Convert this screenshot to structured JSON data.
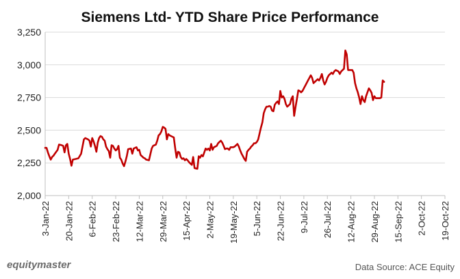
{
  "chart_data": {
    "type": "line",
    "title": "Siemens Ltd- YTD Share Price Performance",
    "xlabel": "",
    "ylabel": "",
    "ylim": [
      2000,
      3250
    ],
    "yticks": [
      2000,
      2250,
      2500,
      2750,
      3000,
      3250
    ],
    "ytick_labels": [
      "2,000",
      "2,250",
      "2,500",
      "2,750",
      "3,000",
      "3,250"
    ],
    "xlim": [
      0,
      289
    ],
    "xticks": [
      {
        "label": "3-Jan-22",
        "day": 0
      },
      {
        "label": "20-Jan-22",
        "day": 17
      },
      {
        "label": "6-Feb-22",
        "day": 34
      },
      {
        "label": "23-Feb-22",
        "day": 51
      },
      {
        "label": "12-Mar-22",
        "day": 68
      },
      {
        "label": "29-Mar-22",
        "day": 85
      },
      {
        "label": "15-Apr-22",
        "day": 102
      },
      {
        "label": "2-May-22",
        "day": 119
      },
      {
        "label": "19-May-22",
        "day": 136
      },
      {
        "label": "5-Jun-22",
        "day": 153
      },
      {
        "label": "22-Jun-22",
        "day": 170
      },
      {
        "label": "9-Jul-22",
        "day": 187
      },
      {
        "label": "26-Jul-22",
        "day": 204
      },
      {
        "label": "12-Aug-22",
        "day": 221
      },
      {
        "label": "29-Aug-22",
        "day": 238
      },
      {
        "label": "15-Sep-22",
        "day": 255
      },
      {
        "label": "2-Oct-22",
        "day": 272
      },
      {
        "label": "19-Oct-22",
        "day": 289
      }
    ],
    "series": [
      {
        "name": "Siemens Ltd",
        "color": "#c00000",
        "points": [
          [
            0,
            2365
          ],
          [
            1,
            2365
          ],
          [
            2,
            2330
          ],
          [
            3,
            2300
          ],
          [
            4,
            2275
          ],
          [
            5,
            2295
          ],
          [
            6,
            2305
          ],
          [
            7,
            2320
          ],
          [
            9,
            2350
          ],
          [
            10,
            2390
          ],
          [
            12,
            2385
          ],
          [
            13,
            2380
          ],
          [
            14,
            2330
          ],
          [
            15,
            2385
          ],
          [
            16,
            2395
          ],
          [
            17,
            2320
          ],
          [
            18,
            2280
          ],
          [
            19,
            2228
          ],
          [
            20,
            2275
          ],
          [
            22,
            2280
          ],
          [
            24,
            2285
          ],
          [
            26,
            2320
          ],
          [
            28,
            2430
          ],
          [
            29,
            2440
          ],
          [
            31,
            2430
          ],
          [
            32,
            2420
          ],
          [
            33,
            2375
          ],
          [
            34,
            2440
          ],
          [
            35,
            2415
          ],
          [
            36,
            2380
          ],
          [
            37,
            2335
          ],
          [
            38,
            2405
          ],
          [
            39,
            2440
          ],
          [
            40,
            2455
          ],
          [
            41,
            2450
          ],
          [
            42,
            2430
          ],
          [
            43,
            2420
          ],
          [
            44,
            2375
          ],
          [
            45,
            2355
          ],
          [
            46,
            2340
          ],
          [
            47,
            2290
          ],
          [
            48,
            2385
          ],
          [
            49,
            2380
          ],
          [
            50,
            2360
          ],
          [
            51,
            2345
          ],
          [
            52,
            2355
          ],
          [
            53,
            2380
          ],
          [
            54,
            2290
          ],
          [
            55,
            2275
          ],
          [
            56,
            2245
          ],
          [
            57,
            2225
          ],
          [
            58,
            2260
          ],
          [
            59,
            2300
          ],
          [
            60,
            2355
          ],
          [
            62,
            2360
          ],
          [
            63,
            2320
          ],
          [
            64,
            2360
          ],
          [
            66,
            2370
          ],
          [
            67,
            2345
          ],
          [
            68,
            2350
          ],
          [
            69,
            2310
          ],
          [
            70,
            2300
          ],
          [
            71,
            2290
          ],
          [
            72,
            2285
          ],
          [
            73,
            2275
          ],
          [
            75,
            2270
          ],
          [
            76,
            2315
          ],
          [
            77,
            2360
          ],
          [
            78,
            2380
          ],
          [
            80,
            2390
          ],
          [
            81,
            2420
          ],
          [
            82,
            2460
          ],
          [
            83,
            2470
          ],
          [
            84,
            2490
          ],
          [
            85,
            2525
          ],
          [
            86,
            2520
          ],
          [
            87,
            2510
          ],
          [
            88,
            2430
          ],
          [
            89,
            2470
          ],
          [
            90,
            2460
          ],
          [
            91,
            2455
          ],
          [
            92,
            2450
          ],
          [
            93,
            2445
          ],
          [
            94,
            2360
          ],
          [
            95,
            2290
          ],
          [
            96,
            2335
          ],
          [
            97,
            2330
          ],
          [
            98,
            2295
          ],
          [
            99,
            2280
          ],
          [
            100,
            2285
          ],
          [
            101,
            2270
          ],
          [
            102,
            2280
          ],
          [
            103,
            2270
          ],
          [
            104,
            2255
          ],
          [
            105,
            2245
          ],
          [
            106,
            2235
          ],
          [
            107,
            2295
          ],
          [
            108,
            2210
          ],
          [
            110,
            2205
          ],
          [
            111,
            2300
          ],
          [
            112,
            2290
          ],
          [
            113,
            2310
          ],
          [
            114,
            2300
          ],
          [
            115,
            2330
          ],
          [
            116,
            2360
          ],
          [
            117,
            2350
          ],
          [
            118,
            2360
          ],
          [
            119,
            2345
          ],
          [
            120,
            2395
          ],
          [
            121,
            2350
          ],
          [
            122,
            2370
          ],
          [
            124,
            2380
          ],
          [
            125,
            2400
          ],
          [
            126,
            2410
          ],
          [
            127,
            2420
          ],
          [
            128,
            2405
          ],
          [
            129,
            2380
          ],
          [
            130,
            2355
          ],
          [
            131,
            2360
          ],
          [
            132,
            2360
          ],
          [
            133,
            2350
          ],
          [
            134,
            2370
          ],
          [
            135,
            2370
          ],
          [
            136,
            2370
          ],
          [
            137,
            2375
          ],
          [
            138,
            2385
          ],
          [
            139,
            2395
          ],
          [
            140,
            2375
          ],
          [
            141,
            2345
          ],
          [
            142,
            2320
          ],
          [
            143,
            2300
          ],
          [
            144,
            2280
          ],
          [
            145,
            2265
          ],
          [
            146,
            2335
          ],
          [
            147,
            2350
          ],
          [
            148,
            2360
          ],
          [
            149,
            2375
          ],
          [
            150,
            2385
          ],
          [
            151,
            2400
          ],
          [
            152,
            2400
          ],
          [
            153,
            2410
          ],
          [
            154,
            2430
          ],
          [
            155,
            2475
          ],
          [
            156,
            2520
          ],
          [
            157,
            2560
          ],
          [
            158,
            2630
          ],
          [
            159,
            2660
          ],
          [
            160,
            2680
          ],
          [
            161,
            2680
          ],
          [
            162,
            2685
          ],
          [
            163,
            2680
          ],
          [
            164,
            2650
          ],
          [
            165,
            2645
          ],
          [
            166,
            2695
          ],
          [
            167,
            2710
          ],
          [
            168,
            2720
          ],
          [
            169,
            2700
          ],
          [
            170,
            2800
          ],
          [
            171,
            2750
          ],
          [
            172,
            2760
          ],
          [
            173,
            2740
          ],
          [
            174,
            2700
          ],
          [
            175,
            2680
          ],
          [
            176,
            2690
          ],
          [
            177,
            2700
          ],
          [
            178,
            2740
          ],
          [
            179,
            2760
          ],
          [
            180,
            2610
          ],
          [
            181,
            2680
          ],
          [
            182,
            2740
          ],
          [
            183,
            2805
          ],
          [
            184,
            2800
          ],
          [
            185,
            2790
          ],
          [
            186,
            2800
          ],
          [
            187,
            2820
          ],
          [
            188,
            2840
          ],
          [
            189,
            2860
          ],
          [
            190,
            2880
          ],
          [
            191,
            2900
          ],
          [
            192,
            2920
          ],
          [
            193,
            2900
          ],
          [
            194,
            2860
          ],
          [
            195,
            2870
          ],
          [
            196,
            2880
          ],
          [
            197,
            2890
          ],
          [
            198,
            2880
          ],
          [
            199,
            2900
          ],
          [
            200,
            2930
          ],
          [
            201,
            2880
          ],
          [
            202,
            2850
          ],
          [
            203,
            2870
          ],
          [
            204,
            2900
          ],
          [
            205,
            2920
          ],
          [
            206,
            2930
          ],
          [
            207,
            2940
          ],
          [
            208,
            2930
          ],
          [
            209,
            2950
          ],
          [
            210,
            2960
          ],
          [
            211,
            2955
          ],
          [
            212,
            2950
          ],
          [
            213,
            2930
          ],
          [
            214,
            2950
          ],
          [
            215,
            2960
          ],
          [
            216,
            2970
          ],
          [
            217,
            3110
          ],
          [
            218,
            3080
          ],
          [
            219,
            2960
          ],
          [
            220,
            2960
          ],
          [
            221,
            2960
          ],
          [
            222,
            2960
          ],
          [
            223,
            2940
          ],
          [
            224,
            2860
          ],
          [
            225,
            2820
          ],
          [
            226,
            2790
          ],
          [
            227,
            2750
          ],
          [
            228,
            2700
          ],
          [
            229,
            2760
          ],
          [
            230,
            2730
          ],
          [
            231,
            2715
          ],
          [
            232,
            2760
          ],
          [
            233,
            2790
          ],
          [
            234,
            2820
          ],
          [
            235,
            2805
          ],
          [
            236,
            2785
          ],
          [
            237,
            2730
          ],
          [
            238,
            2760
          ],
          [
            239,
            2745
          ],
          [
            240,
            2745
          ],
          [
            241,
            2745
          ],
          [
            242,
            2745
          ],
          [
            243,
            2750
          ],
          [
            244,
            2880
          ],
          [
            245,
            2870
          ]
        ]
      }
    ],
    "footer": {
      "brand": "equitymaster",
      "source": "Data Source: ACE Equity"
    }
  }
}
